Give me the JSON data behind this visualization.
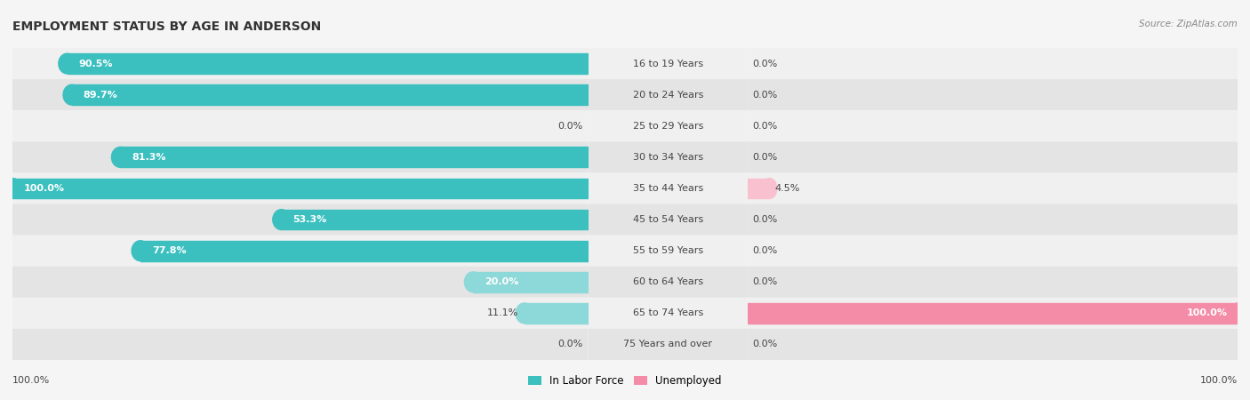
{
  "title": "EMPLOYMENT STATUS BY AGE IN ANDERSON",
  "source": "Source: ZipAtlas.com",
  "categories": [
    "16 to 19 Years",
    "20 to 24 Years",
    "25 to 29 Years",
    "30 to 34 Years",
    "35 to 44 Years",
    "45 to 54 Years",
    "55 to 59 Years",
    "60 to 64 Years",
    "65 to 74 Years",
    "75 Years and over"
  ],
  "labor_force": [
    90.5,
    89.7,
    0.0,
    81.3,
    100.0,
    53.3,
    77.8,
    20.0,
    11.1,
    0.0
  ],
  "unemployed": [
    0.0,
    0.0,
    0.0,
    0.0,
    4.5,
    0.0,
    0.0,
    0.0,
    100.0,
    0.0
  ],
  "labor_force_color": "#3bbfbf",
  "labor_force_color_light": "#8dd8d8",
  "unemployed_color": "#f48ca7",
  "unemployed_color_light": "#f9c0d0",
  "row_colors": [
    "#f0f0f0",
    "#e4e4e4"
  ],
  "label_color": "#444444",
  "title_color": "#333333",
  "source_color": "#888888",
  "axis_label_left": "100.0%",
  "axis_label_right": "100.0%",
  "legend_items": [
    "In Labor Force",
    "Unemployed"
  ],
  "max_value": 100.0,
  "bar_height": 0.65,
  "fig_bg": "#f5f5f5"
}
